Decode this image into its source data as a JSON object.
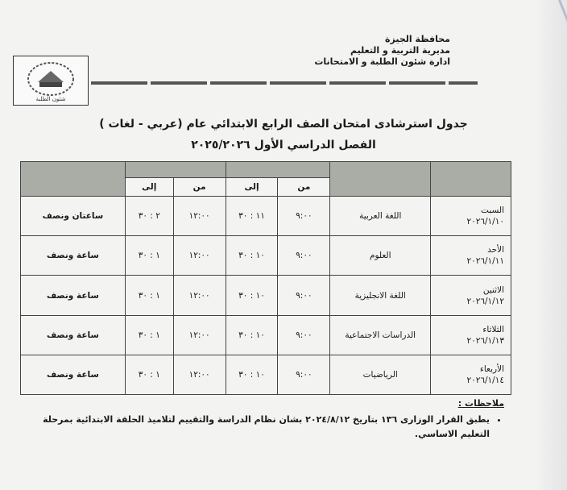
{
  "header": {
    "lines": [
      "محافظة الجيزة",
      "مديرية التربية و التعليم",
      "ادارة شئون الطلبة و الامتحانات"
    ],
    "logo_text": "شئون الطلبة"
  },
  "title": "جدول استرشادى امتحان الصف الرابع الابتدائي عام (عربي - لغات )",
  "subtitle": "الفصل الدراسي الأول ٢٠٢٥/٢٠٢٦",
  "table": {
    "subheaders": {
      "from": "من",
      "to": "إلى"
    },
    "rows": [
      {
        "day": "السبت",
        "date": "٢٠٢٦/١/١٠",
        "subject": "اللغة العربية",
        "from1": "٩:٠٠",
        "to1": "١١ : ٣٠",
        "from2": "١٢:٠٠",
        "to2": "٢ : ٣٠",
        "duration": "ساعتان ونصف"
      },
      {
        "day": "الأحد",
        "date": "٢٠٢٦/١/١١",
        "subject": "العلوم",
        "from1": "٩:٠٠",
        "to1": "١٠ : ٣٠",
        "from2": "١٢:٠٠",
        "to2": "١ : ٣٠",
        "duration": "ساعة ونصف"
      },
      {
        "day": "الاثنين",
        "date": "٢٠٢٦/١/١٢",
        "subject": "اللغة الانجليزية",
        "from1": "٩:٠٠",
        "to1": "١٠ : ٣٠",
        "from2": "١٢:٠٠",
        "to2": "١ : ٣٠",
        "duration": "ساعة ونصف"
      },
      {
        "day": "الثلاثاء",
        "date": "٢٠٢٦/١/١٣",
        "subject": "الدراسات الاجتماعية",
        "from1": "٩:٠٠",
        "to1": "١٠ : ٣٠",
        "from2": "١٢:٠٠",
        "to2": "١ : ٣٠",
        "duration": "ساعة ونصف"
      },
      {
        "day": "الأربعاء",
        "date": "٢٠٢٦/١/١٤",
        "subject": "الرياضيات",
        "from1": "٩:٠٠",
        "to1": "١٠ : ٣٠",
        "from2": "١٢:٠٠",
        "to2": "١ : ٣٠",
        "duration": "ساعة ونصف"
      }
    ]
  },
  "notes": {
    "heading": "ملاحظات :",
    "items": [
      "يطبق القرار الوزارى ١٣٦ بتاريخ ٢٠٢٤/٨/١٢ بشان نظام الدراسة والتقييم لتلاميذ الحلقة الابتدائية بمرحلة التعليم الاساسي."
    ]
  }
}
